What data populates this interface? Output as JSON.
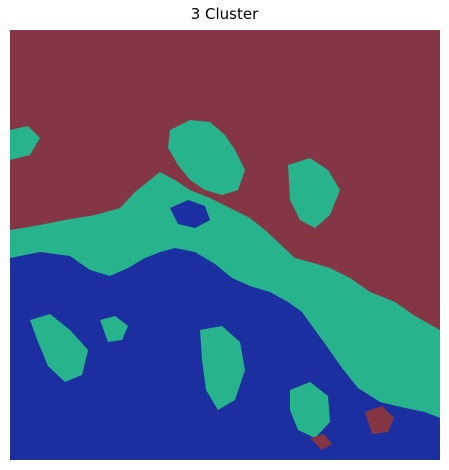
{
  "title": "3 Cluster",
  "colors": {
    "cluster_maroon": "#843645",
    "cluster_teal": "#27b38c",
    "cluster_blue": "#1b2fa0"
  }
}
